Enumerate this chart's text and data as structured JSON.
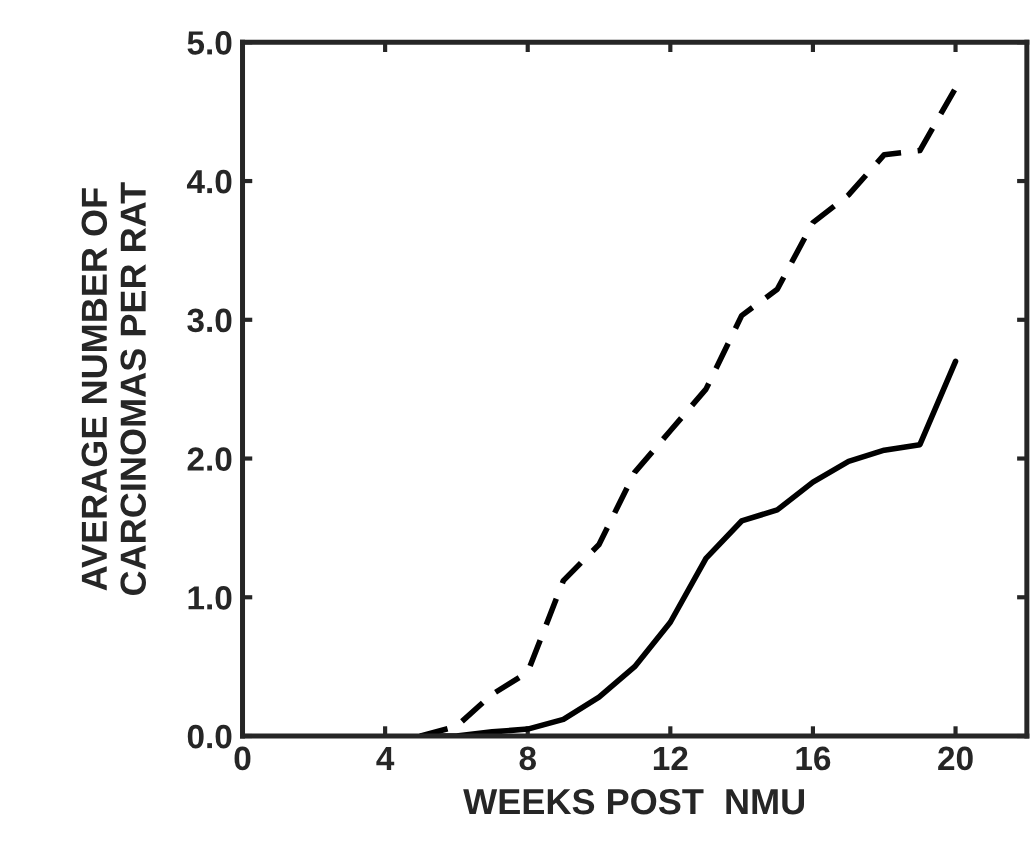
{
  "chart_data": {
    "type": "line",
    "xlabel": "WEEKS POST  NMU",
    "ylabel": "AVERAGE NUMBER OF\nCARCINOMAS PER RAT",
    "x": [
      5,
      6,
      7,
      8,
      9,
      10,
      11,
      12,
      13,
      14,
      15,
      16,
      17,
      18,
      19,
      20
    ],
    "series": [
      {
        "color": "#000000",
        "line_style": "dashed",
        "values": [
          0,
          0.07,
          0.3,
          0.46,
          1.12,
          1.38,
          1.9,
          2.2,
          2.5,
          3.03,
          3.22,
          3.7,
          3.9,
          4.19,
          4.22,
          4.67
        ]
      },
      {
        "color": "#000000",
        "line_style": "solid",
        "values": [
          0,
          0,
          0.03,
          0.05,
          0.12,
          0.28,
          0.5,
          0.82,
          1.28,
          1.55,
          1.63,
          1.83,
          1.98,
          2.06,
          2.1,
          2.7
        ]
      }
    ],
    "xlim": [
      0,
      22
    ],
    "ylim": [
      0,
      5
    ],
    "xticks": [
      0,
      4,
      8,
      12,
      16,
      20
    ],
    "yticks": [
      {
        "value": 0,
        "label": "0.0"
      },
      {
        "value": 1,
        "label": "1.0"
      },
      {
        "value": 2,
        "label": "2.0"
      },
      {
        "value": 3,
        "label": "3.0"
      },
      {
        "value": 4,
        "label": "4.0"
      },
      {
        "value": 5,
        "label": "5.0"
      }
    ],
    "grid": false,
    "legend": false
  }
}
